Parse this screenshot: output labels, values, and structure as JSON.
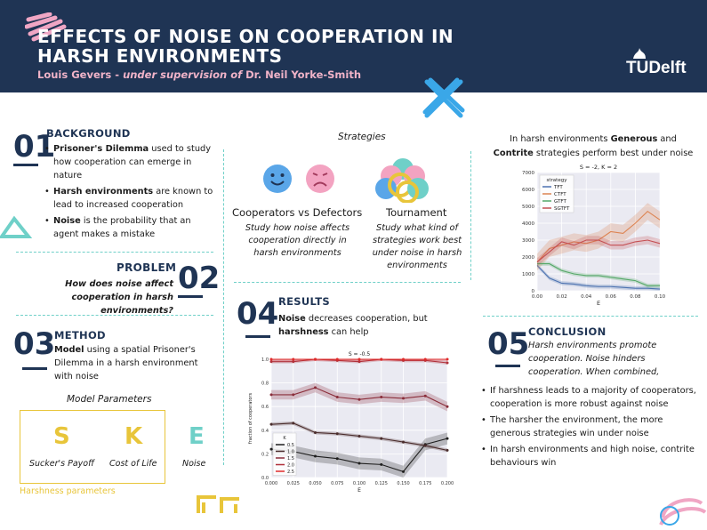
{
  "header": {
    "title": "EFFECTS OF NOISE ON COOPERATION IN HARSH ENVIRONMENTS",
    "author": "Louis Gevers",
    "supervision_text": "under supervision of",
    "supervisor": "Dr. Neil Yorke-Smith",
    "logo_text": "TUDelft",
    "colors": {
      "background": "#1f3454",
      "author": "#f0b3c8"
    }
  },
  "background": {
    "number": "01",
    "heading": "BACKGROUND",
    "bullets": [
      {
        "bold": "Prisoner's Dilemma",
        "rest": " used to study how cooperation can emerge in nature"
      },
      {
        "bold": "Harsh environments",
        "rest": " are known to lead to increased cooperation"
      },
      {
        "bold": "Noise",
        "rest": " is the probability that an agent makes a mistake"
      }
    ]
  },
  "problem": {
    "number": "02",
    "heading": "PROBLEM",
    "question": "How does noise affect cooperation in harsh environments?"
  },
  "method": {
    "number": "03",
    "heading": "METHOD",
    "text_bold": "Model",
    "text_rest": " using a spatial Prisoner's Dilemma in a harsh environment with noise",
    "params_title": "Model Parameters",
    "params": [
      {
        "letter": "S",
        "label": "Sucker's Payoff",
        "color": "#e8c53a"
      },
      {
        "letter": "K",
        "label": "Cost of Life",
        "color": "#e8c53a"
      },
      {
        "letter": "E",
        "label": "Noise",
        "color": "#6fd0c8"
      }
    ],
    "harshness_label": "Harshness parameters"
  },
  "strategies": {
    "title": "Strategies",
    "left_heading": "Cooperators vs Defectors",
    "left_desc": "Study how noise affects cooperation directly in harsh environments",
    "right_heading": "Tournament",
    "right_desc": "Study what kind of strategies work best under noise in harsh environments",
    "icons": [
      "smiley-face-icon",
      "frowny-face-icon",
      "strategy-circles-icon"
    ]
  },
  "results": {
    "number": "04",
    "heading": "RESULTS",
    "line1_bold": "Noise",
    "line1_rest": " decreases cooperation, but",
    "line2_bold": "harshness",
    "line2_rest": " can help"
  },
  "tournament_text": {
    "prefix": "In harsh environments ",
    "bold1": "Generous",
    "mid": " and",
    "bold2": "Contrite",
    "suffix": " strategies perform best under noise"
  },
  "conclusion": {
    "number": "05",
    "heading": "CONCLUSION",
    "intro": "Harsh environments promote cooperation. Noise hinders cooperation. When combined,",
    "bullets": [
      "If harshness leads to a majority of cooperators, cooperation is more robust against noise",
      "The harsher the environment, the more generous strategies win under noise",
      "In harsh environments and high noise, contrite behaviours win"
    ]
  },
  "chart_data": [
    {
      "type": "line",
      "title": "S = -2, K = 2",
      "xlabel": "E",
      "ylabel": "",
      "legend_title": "strategy",
      "legend_position": "top-left",
      "grid": true,
      "x": [
        0.0,
        0.01,
        0.02,
        0.03,
        0.04,
        0.05,
        0.06,
        0.07,
        0.08,
        0.09,
        0.1
      ],
      "xticks": [
        "0.00",
        "0.02",
        "0.04",
        "0.06",
        "0.08",
        "0.10"
      ],
      "yticks": [
        "0",
        "1000",
        "2000",
        "3000",
        "4000",
        "5000",
        "6000",
        "7000"
      ],
      "xlim": [
        0.0,
        0.1
      ],
      "ylim": [
        0,
        7000
      ],
      "series": [
        {
          "name": "TFT",
          "color": "#4c72b0",
          "values": [
            1500,
            750,
            450,
            400,
            300,
            250,
            250,
            200,
            150,
            150,
            100
          ]
        },
        {
          "name": "CTFT",
          "color": "#dd8452",
          "values": [
            1700,
            2500,
            2700,
            2900,
            2800,
            3000,
            3500,
            3400,
            4000,
            4700,
            4200
          ]
        },
        {
          "name": "GTFT",
          "color": "#55a868",
          "values": [
            1600,
            1600,
            1200,
            1000,
            900,
            900,
            800,
            700,
            600,
            300,
            300
          ]
        },
        {
          "name": "SGTFT",
          "color": "#c44e52",
          "values": [
            1700,
            2300,
            2900,
            2700,
            3000,
            3000,
            2700,
            2700,
            2900,
            3000,
            2800
          ]
        }
      ]
    },
    {
      "type": "line",
      "title": "S = -0.5",
      "xlabel": "E",
      "ylabel": "fraction of cooperators",
      "legend_title": "K",
      "legend_position": "bottom-left",
      "grid": true,
      "x": [
        0.0,
        0.025,
        0.05,
        0.075,
        0.1,
        0.125,
        0.15,
        0.175,
        0.2
      ],
      "xticks": [
        "0.000",
        "0.025",
        "0.050",
        "0.075",
        "0.100",
        "0.125",
        "0.150",
        "0.175",
        "0.200"
      ],
      "yticks": [
        "0.0",
        "0.2",
        "0.4",
        "0.6",
        "0.8",
        "1.0"
      ],
      "xlim": [
        0.0,
        0.2
      ],
      "ylim": [
        0.0,
        1.0
      ],
      "series": [
        {
          "name": "0.5",
          "color": "#1e1e1e",
          "values": [
            0.24,
            0.22,
            0.18,
            0.16,
            0.12,
            0.11,
            0.05,
            0.28,
            0.33
          ]
        },
        {
          "name": "1.0",
          "color": "#4a2c2c",
          "values": [
            0.45,
            0.46,
            0.38,
            0.37,
            0.35,
            0.33,
            0.3,
            0.27,
            0.23
          ]
        },
        {
          "name": "1.5",
          "color": "#8a2d3a",
          "values": [
            0.7,
            0.7,
            0.76,
            0.68,
            0.66,
            0.68,
            0.67,
            0.69,
            0.6
          ]
        },
        {
          "name": "2.0",
          "color": "#b0303a",
          "values": [
            0.98,
            0.98,
            1.0,
            0.99,
            0.98,
            1.0,
            0.99,
            0.99,
            0.97
          ]
        },
        {
          "name": "2.5",
          "color": "#e02b2b",
          "values": [
            1.0,
            1.0,
            1.0,
            1.0,
            1.0,
            1.0,
            1.0,
            1.0,
            1.0
          ]
        }
      ]
    }
  ]
}
